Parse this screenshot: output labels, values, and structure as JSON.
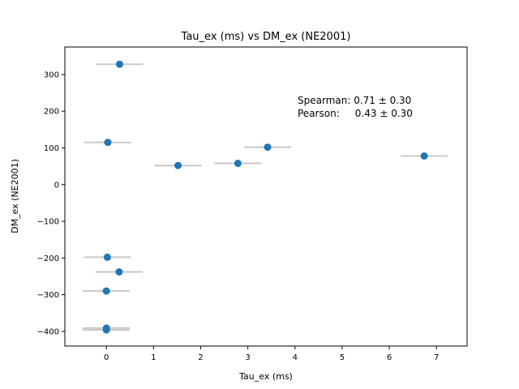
{
  "chart_data": {
    "type": "scatter",
    "title": "Tau_ex (ms) vs DM_ex (NE2001)",
    "xlabel": "Tau_ex (ms)",
    "ylabel": "DM_ex (NE2001)",
    "xlim": [
      -0.88,
      7.65
    ],
    "ylim": [
      -440,
      375
    ],
    "xticks": [
      0,
      1,
      2,
      3,
      4,
      5,
      6,
      7
    ],
    "yticks": [
      -400,
      -300,
      -200,
      -100,
      0,
      100,
      200,
      300
    ],
    "xtick_labels": [
      "0",
      "1",
      "2",
      "3",
      "4",
      "5",
      "6",
      "7"
    ],
    "ytick_labels": [
      "−400",
      "−300",
      "−200",
      "−100",
      "0",
      "100",
      "200",
      "300"
    ],
    "grid": false,
    "point_color": "#1f77b4",
    "errorbar_color": "#c8c8c8",
    "points": [
      {
        "x": 0.28,
        "y": 328,
        "xerr": 0.5
      },
      {
        "x": 0.03,
        "y": 115,
        "xerr": 0.5
      },
      {
        "x": 1.52,
        "y": 52,
        "xerr": 0.5
      },
      {
        "x": 2.79,
        "y": 58,
        "xerr": 0.5
      },
      {
        "x": 3.42,
        "y": 102,
        "xerr": 0.5
      },
      {
        "x": 6.74,
        "y": 78,
        "xerr": 0.5
      },
      {
        "x": 0.02,
        "y": -198,
        "xerr": 0.5
      },
      {
        "x": 0.27,
        "y": -238,
        "xerr": 0.5
      },
      {
        "x": 0.0,
        "y": -290,
        "xerr": 0.5
      },
      {
        "x": 0.0,
        "y": -391,
        "xerr": 0.5
      },
      {
        "x": 0.0,
        "y": -396,
        "xerr": 0.5
      }
    ],
    "annotations": [
      "Spearman: 0.71 ± 0.30",
      "Pearson:     0.43 ± 0.30"
    ]
  }
}
